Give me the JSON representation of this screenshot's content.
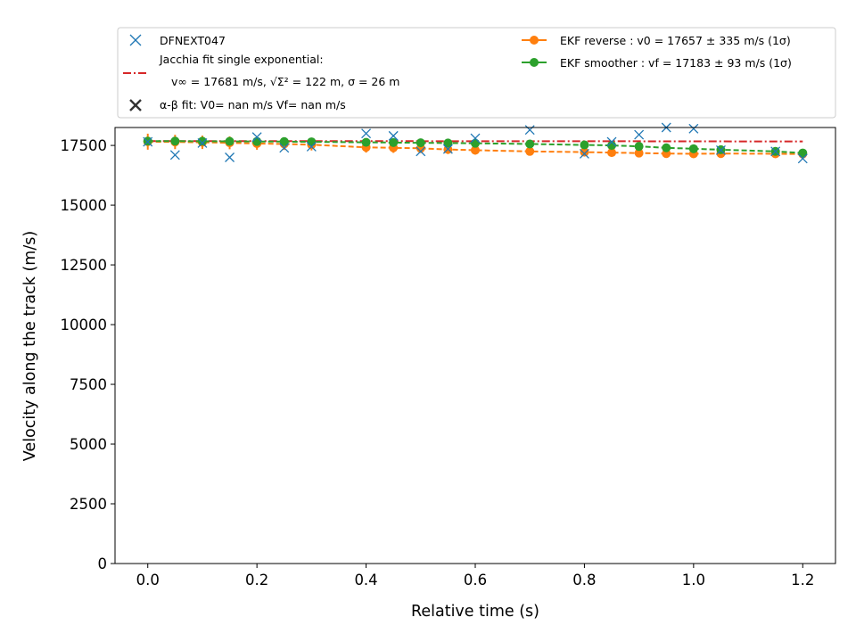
{
  "chart_data": {
    "type": "line",
    "xlabel": "Relative time (s)",
    "ylabel": "Velocity along the track (m/s)",
    "xlim": [
      -0.06,
      1.26
    ],
    "ylim": [
      0,
      18250
    ],
    "xticks": [
      "0.0",
      "0.2",
      "0.4",
      "0.6",
      "0.8",
      "1.0",
      "1.2"
    ],
    "yticks": [
      "0",
      "2500",
      "5000",
      "7500",
      "10000",
      "12500",
      "15000",
      "17500"
    ],
    "grid": false,
    "legend_position": "top",
    "legend": {
      "obs": "DFNEXT047",
      "jacchia_line1": "Jacchia fit single exponential:",
      "jacchia_line2": "v∞ = 17681 m/s, √Σ² = 122 m, σ = 26 m",
      "alphabeta": "α-β fit: V0= nan m/s   Vf= nan m/s",
      "ekf_reverse": "EKF reverse : v0 =  17657 ± 335 m/s (1σ)",
      "ekf_smoother": "EKF smoother : vf =  17183 ± 93 m/s (1σ)"
    },
    "colors": {
      "obs": "#1f77b4",
      "jacchia": "#d62728",
      "alphabeta": "#333333",
      "ekf_reverse": "#ff7f0e",
      "ekf_smoother": "#2ca02c"
    },
    "series": [
      {
        "name": "DFNEXT047",
        "style": "x-marker",
        "x": [
          0.0,
          0.05,
          0.1,
          0.15,
          0.2,
          0.25,
          0.3,
          0.4,
          0.45,
          0.5,
          0.55,
          0.6,
          0.7,
          0.8,
          0.85,
          0.9,
          0.95,
          1.0,
          1.05,
          1.15,
          1.2
        ],
        "y": [
          17650,
          17100,
          17600,
          17000,
          17850,
          17400,
          17450,
          18000,
          17900,
          17250,
          17350,
          17800,
          18150,
          17150,
          17650,
          17950,
          18250,
          18200,
          17300,
          17250,
          16950
        ]
      },
      {
        "name": "Jacchia fit single exponential",
        "style": "dash-dot",
        "x": [
          0.0,
          0.2,
          0.4,
          0.6,
          0.8,
          0.9,
          1.0,
          1.1,
          1.2
        ],
        "y": [
          17681,
          17680,
          17679,
          17678,
          17676,
          17674,
          17671,
          17668,
          17665
        ]
      },
      {
        "name": "EKF reverse",
        "style": "dashed-errorbar",
        "x": [
          0.0,
          0.05,
          0.1,
          0.15,
          0.2,
          0.25,
          0.3,
          0.4,
          0.45,
          0.5,
          0.55,
          0.6,
          0.7,
          0.8,
          0.85,
          0.9,
          0.95,
          1.0,
          1.05,
          1.15,
          1.2
        ],
        "y": [
          17657,
          17645,
          17630,
          17610,
          17580,
          17560,
          17530,
          17420,
          17400,
          17380,
          17330,
          17300,
          17250,
          17220,
          17200,
          17180,
          17160,
          17150,
          17160,
          17150,
          17140
        ],
        "err": [
          335,
          300,
          280,
          270,
          260,
          250,
          240,
          220,
          210,
          200,
          190,
          180,
          160,
          150,
          140,
          135,
          130,
          125,
          120,
          110,
          100
        ]
      },
      {
        "name": "EKF smoother",
        "style": "dashed-errorbar",
        "x": [
          0.0,
          0.05,
          0.1,
          0.15,
          0.2,
          0.25,
          0.3,
          0.4,
          0.45,
          0.5,
          0.55,
          0.6,
          0.7,
          0.8,
          0.85,
          0.9,
          0.95,
          1.0,
          1.05,
          1.15,
          1.2
        ],
        "y": [
          17680,
          17680,
          17675,
          17670,
          17665,
          17660,
          17650,
          17630,
          17620,
          17610,
          17600,
          17590,
          17560,
          17520,
          17500,
          17460,
          17400,
          17360,
          17320,
          17250,
          17183
        ],
        "err": [
          160,
          150,
          140,
          135,
          130,
          125,
          120,
          115,
          110,
          105,
          100,
          100,
          100,
          95,
          95,
          95,
          95,
          93,
          93,
          93,
          93
        ]
      }
    ]
  }
}
